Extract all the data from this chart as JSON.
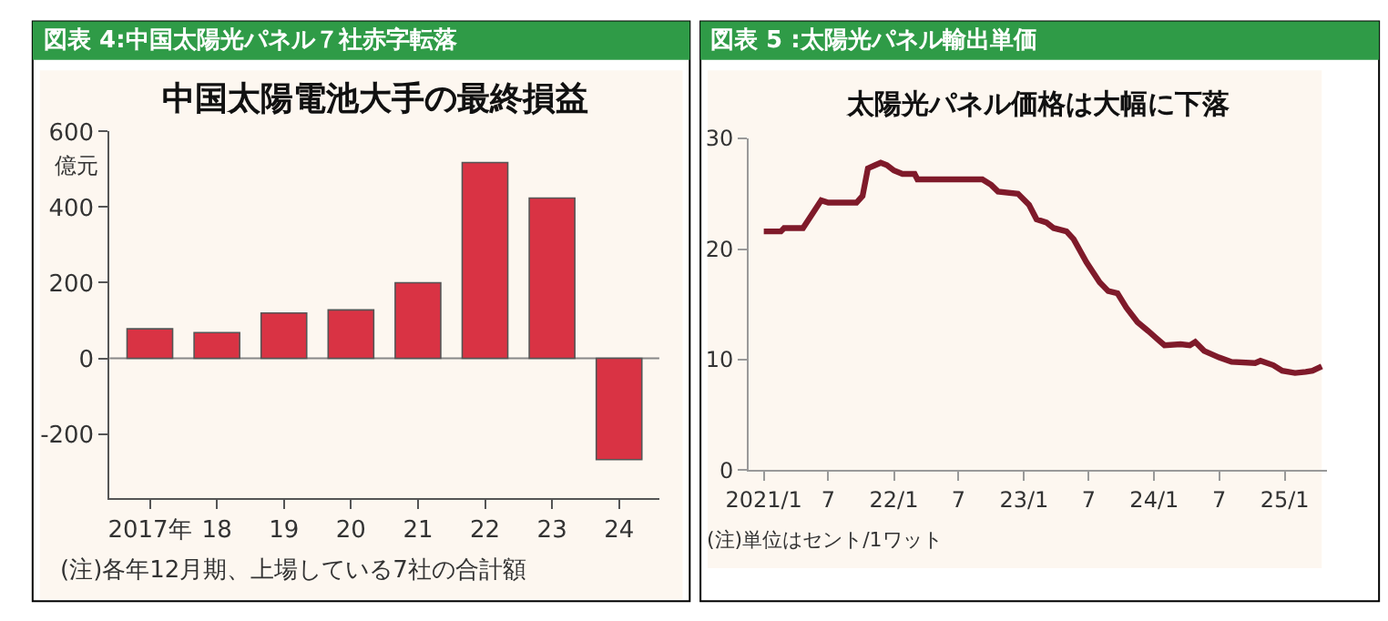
{
  "chart_data": [
    {
      "type": "bar",
      "title": "図表 4:中国太陽光パネル７社赤字転落",
      "subtitle": "中国太陽電池大手の最終損益",
      "ylabel": "億元",
      "categories": [
        "2017年",
        "18",
        "19",
        "20",
        "21",
        "22",
        "23",
        "24"
      ],
      "series": [
        {
          "color": "#d93344",
          "values": [
            78,
            68,
            120,
            128,
            200,
            518,
            424,
            -268
          ]
        }
      ],
      "ylim": [
        -370,
        600
      ],
      "yticks": [
        -200,
        0,
        200,
        400,
        600
      ],
      "annotations": [
        "(注)各年12月期、上場している7社の合計額"
      ]
    },
    {
      "type": "line",
      "title": "図表 5 :太陽光パネル輸出単価",
      "subtitle": "太陽光パネル価格は大幅に下落",
      "x": [
        "2021-01-01",
        "2021-02-18",
        "2021-02-27",
        "2021-04-21",
        "2021-06-11",
        "2021-07-01",
        "2021-09-18",
        "2021-10-05",
        "2021-10-20",
        "2021-11-10",
        "2021-11-25",
        "2021-12-12",
        "2022-01-01",
        "2022-01-25",
        "2022-02-28",
        "2022-03-08",
        "2022-09-06",
        "2022-10-01",
        "2022-10-20",
        "2022-12-15",
        "2023-01-15",
        "2023-02-05",
        "2023-03-05",
        "2023-03-25",
        "2023-04-30",
        "2023-05-20",
        "2023-06-25",
        "2023-08-01",
        "2023-08-25",
        "2023-09-20",
        "2023-10-15",
        "2023-11-15",
        "2023-12-15",
        "2024-01-30",
        "2024-03-15",
        "2024-04-10",
        "2024-04-25",
        "2024-05-20",
        "2024-07-01",
        "2024-08-05",
        "2024-10-10",
        "2024-10-25",
        "2024-11-30",
        "2024-12-25",
        "2025-01-30",
        "2025-03-01",
        "2025-03-20",
        "2025-04-15"
      ],
      "series": [
        {
          "color": "#7f1a2a",
          "values": [
            21.6,
            21.6,
            21.9,
            21.9,
            24.4,
            24.2,
            24.2,
            24.8,
            27.3,
            27.6,
            27.8,
            27.6,
            27.1,
            26.8,
            26.8,
            26.3,
            26.3,
            25.8,
            25.2,
            25.0,
            24.0,
            22.7,
            22.4,
            21.9,
            21.6,
            20.9,
            18.8,
            17.0,
            16.2,
            16.0,
            14.7,
            13.4,
            12.6,
            11.3,
            11.4,
            11.3,
            11.6,
            10.8,
            10.2,
            9.8,
            9.7,
            9.9,
            9.5,
            9.0,
            8.8,
            8.9,
            9.0,
            9.4
          ]
        }
      ],
      "xlim": [
        "2020-11-20",
        "2025-04-30"
      ],
      "xticks": [
        {
          "value": "2021-01-01",
          "label": "2021/1"
        },
        {
          "value": "2021-07-01",
          "label": "7"
        },
        {
          "value": "2022-01-01",
          "label": "22/1"
        },
        {
          "value": "2022-07-01",
          "label": "7"
        },
        {
          "value": "2023-01-01",
          "label": "23/1"
        },
        {
          "value": "2023-07-01",
          "label": "7"
        },
        {
          "value": "2024-01-01",
          "label": "24/1"
        },
        {
          "value": "2024-07-01",
          "label": "7"
        },
        {
          "value": "2025-01-01",
          "label": "25/1"
        }
      ],
      "ylim": [
        0,
        30
      ],
      "yticks": [
        0,
        10,
        20,
        30
      ],
      "annotations": [
        "(注)単位はセント/1ワット"
      ]
    }
  ]
}
